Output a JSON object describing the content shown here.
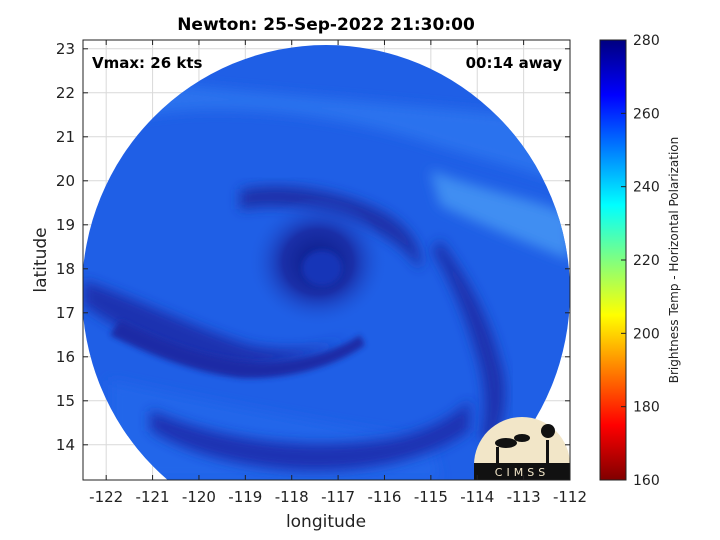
{
  "title": "Newton: 25-Sep-2022 21:30:00",
  "vmax_label": "Vmax: 26 kts",
  "time_label": "00:14 away",
  "xlabel": "longitude",
  "ylabel": "latitude",
  "colorbar_label": "Brightness Temp - Horizontal Polarization",
  "logo_text": "CIMSS",
  "colors": {
    "disk_base": "#1f5fe6",
    "eye_dark": "#12249a",
    "band_dark": "#1a32b0",
    "band_light": "#3f8ef2",
    "grid": "#d9d9d9"
  },
  "chart_data": {
    "type": "heatmap",
    "title": "Newton: 25-Sep-2022 21:30:00",
    "xlabel": "longitude",
    "ylabel": "latitude",
    "xlim": [
      -122.5,
      -112
    ],
    "ylim": [
      13.2,
      23.2
    ],
    "xticks": [
      -122,
      -121,
      -120,
      -119,
      -118,
      -117,
      -116,
      -115,
      -114,
      -113,
      -112
    ],
    "yticks": [
      14,
      15,
      16,
      17,
      18,
      19,
      20,
      21,
      22,
      23
    ],
    "grid": true,
    "colorbar": {
      "label": "Brightness Temp - Horizontal Polarization",
      "range": [
        160,
        280
      ],
      "ticks": [
        160,
        180,
        200,
        220,
        240,
        260,
        280
      ],
      "colormap": "jet"
    },
    "storm_center": {
      "lon": -117.2,
      "lat": 18.2
    },
    "vmax_kts": 26
  }
}
